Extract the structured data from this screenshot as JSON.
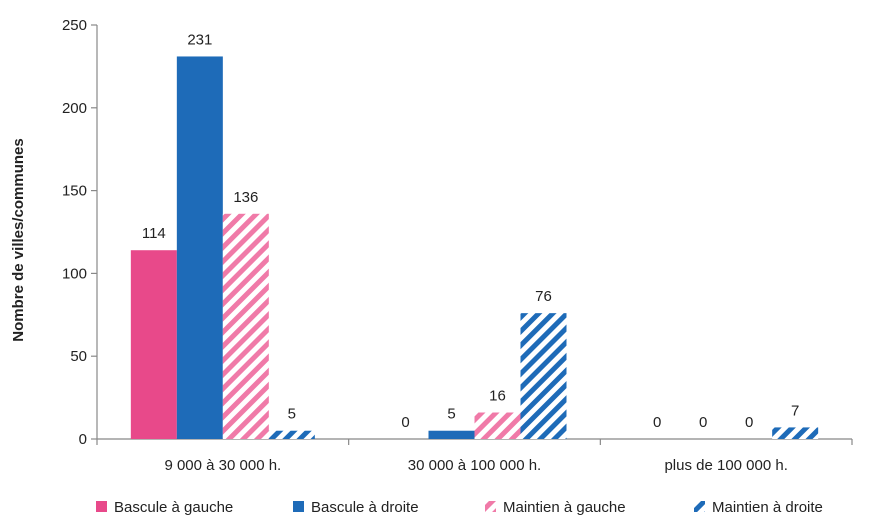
{
  "chart_data": {
    "type": "bar",
    "title": "",
    "xlabel": "",
    "ylabel": "Nombre de villes/communes",
    "ylim": [
      0,
      250
    ],
    "yticks": [
      0,
      50,
      100,
      150,
      200,
      250
    ],
    "grid": false,
    "legend_position": "bottom",
    "categories": [
      "9 000 à 30 000 h.",
      "30 000 à 100 000 h.",
      "plus de 100 000 h."
    ],
    "series": [
      {
        "name": "Bascule à gauche",
        "values": [
          114,
          0,
          0
        ],
        "color": "#e8498a",
        "pattern": "solid"
      },
      {
        "name": "Bascule à droite",
        "values": [
          231,
          5,
          0
        ],
        "color": "#1e6bb8",
        "pattern": "solid"
      },
      {
        "name": "Maintien à gauche",
        "values": [
          136,
          16,
          0
        ],
        "color": "#f07aa8",
        "pattern": "hatched"
      },
      {
        "name": "Maintien à droite",
        "values": [
          5,
          76,
          7
        ],
        "color": "#1e6bb8",
        "pattern": "hatched"
      }
    ]
  }
}
